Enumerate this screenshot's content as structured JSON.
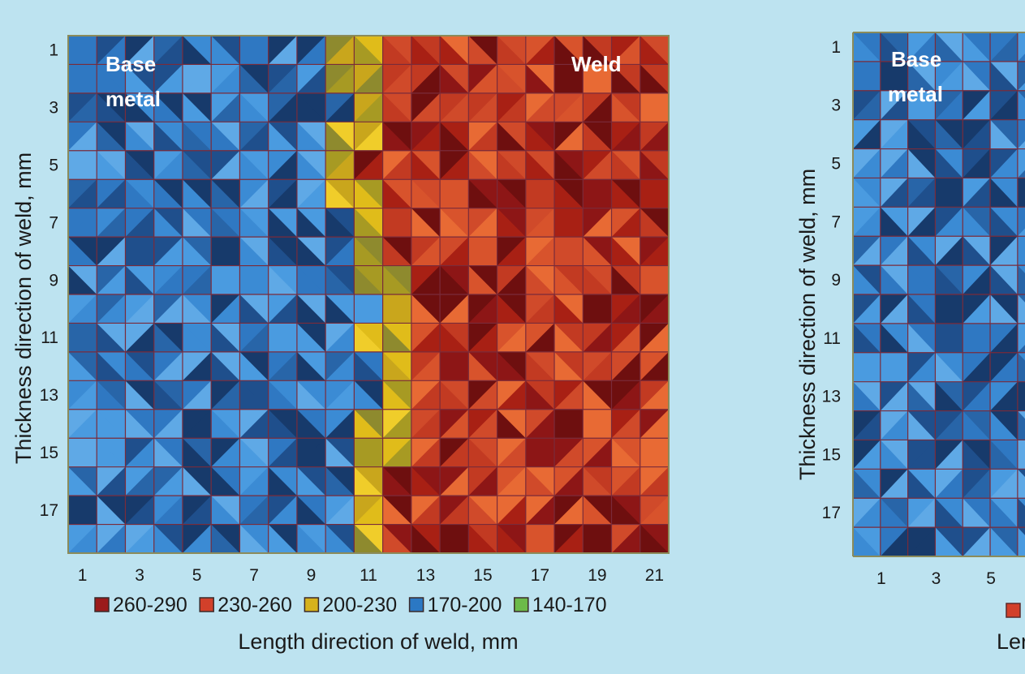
{
  "chart_data": [
    {
      "type": "heatmap",
      "title": "",
      "xlabel": "Length direction of weld, mm",
      "ylabel": "Thickness direction of weld, mm",
      "xlim": [
        0,
        21
      ],
      "ylim": [
        0,
        18
      ],
      "x_ticks": [
        "1",
        "3",
        "5",
        "7",
        "9",
        "11",
        "13",
        "15",
        "17",
        "19",
        "21"
      ],
      "y_ticks": [
        "1",
        "3",
        "5",
        "7",
        "9",
        "11",
        "13",
        "15",
        "17"
      ],
      "annotations": [
        "Base",
        "metal",
        "Weld"
      ],
      "legend": [
        {
          "label": "260-290",
          "color": "#9b1b1b"
        },
        {
          "label": "230-260",
          "color": "#d2402a"
        },
        {
          "label": "200-230",
          "color": "#d7b21c"
        },
        {
          "label": "170-200",
          "color": "#2b78c4"
        },
        {
          "label": "140-170",
          "color": "#6cba4a"
        }
      ],
      "legend_position": "bottom",
      "weld_boundary_x": [
        10.1,
        10.0,
        10.4,
        10.0,
        9.6,
        9.9,
        10.2,
        10.5,
        10.9,
        11.2,
        11.1,
        11.3,
        11.2,
        11.0,
        10.8,
        10.6,
        10.4,
        10.2
      ]
    },
    {
      "type": "heatmap",
      "title": "",
      "xlabel": "Length direction of weld, mm",
      "ylabel": "Thickness direction of weld, mm",
      "ylim": [
        0,
        18
      ],
      "x_ticks": [
        "1",
        "3",
        "5"
      ],
      "y_ticks": [
        "1",
        "3",
        "5",
        "7",
        "9",
        "11",
        "13",
        "15",
        "17"
      ],
      "annotations": [
        "Base",
        "metal"
      ],
      "legend_first_color": "#d2402a",
      "xlabel_visible": "Ler"
    }
  ]
}
